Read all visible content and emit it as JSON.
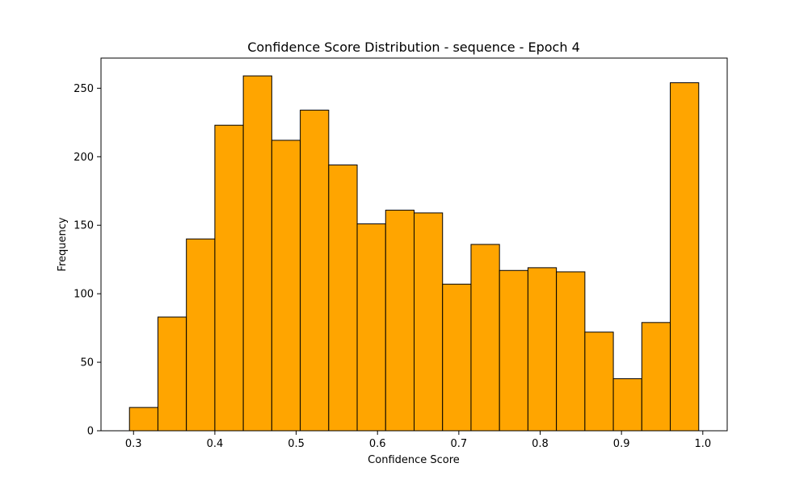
{
  "chart_data": {
    "type": "bar",
    "title": "Confidence Score Distribution - sequence - Epoch 4",
    "xlabel": "Confidence Score",
    "ylabel": "Frequency",
    "bin_edges": [
      0.295,
      0.33,
      0.365,
      0.4,
      0.435,
      0.47,
      0.505,
      0.54,
      0.575,
      0.61,
      0.645,
      0.68,
      0.715,
      0.75,
      0.785,
      0.82,
      0.855,
      0.89,
      0.925,
      0.96,
      0.995
    ],
    "values": [
      17,
      83,
      140,
      223,
      259,
      212,
      234,
      194,
      151,
      161,
      159,
      107,
      136,
      117,
      119,
      116,
      72,
      38,
      79,
      254
    ],
    "xlim": [
      0.26,
      1.03
    ],
    "ylim": [
      0,
      272
    ],
    "xticks": [
      0.3,
      0.4,
      0.5,
      0.6,
      0.7,
      0.8,
      0.9,
      1.0
    ],
    "xtick_labels": [
      "0.3",
      "0.4",
      "0.5",
      "0.6",
      "0.7",
      "0.8",
      "0.9",
      "1.0"
    ],
    "yticks": [
      0,
      50,
      100,
      150,
      200,
      250
    ],
    "ytick_labels": [
      "0",
      "50",
      "100",
      "150",
      "200",
      "250"
    ],
    "bar_color": "#ffa500",
    "edge_color": "#000000",
    "grid": false
  }
}
